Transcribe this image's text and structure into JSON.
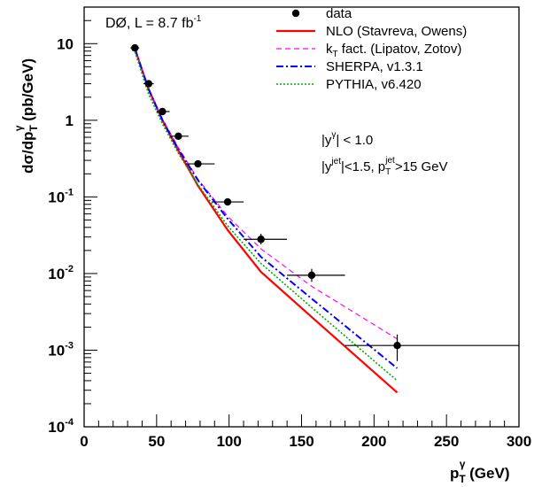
{
  "chart_data": {
    "type": "scatter",
    "title": "",
    "experiment_label": {
      "main": "DØ, L = 8.7 fb",
      "sup": "-1"
    },
    "xlabel": {
      "main": "p",
      "sub": "T",
      "sup": "γ",
      "tail": " (GeV)"
    },
    "ylabel": {
      "pre": "dσ/dp",
      "sub": "T",
      "sup": "γ",
      "tail": " (pb/GeV)"
    },
    "xlim": [
      0,
      300
    ],
    "ylim": [
      0.0001,
      30
    ],
    "y_scale": "log",
    "x_ticks": [
      0,
      50,
      100,
      150,
      200,
      250,
      300
    ],
    "y_ticks": [
      {
        "value": 0.0001,
        "base": "10",
        "exp": "-4"
      },
      {
        "value": 0.001,
        "base": "10",
        "exp": "-3"
      },
      {
        "value": 0.01,
        "base": "10",
        "exp": "-2"
      },
      {
        "value": 0.1,
        "base": "10",
        "exp": "-1"
      },
      {
        "value": 1,
        "base": "1",
        "exp": ""
      },
      {
        "value": 10,
        "base": "10",
        "exp": ""
      }
    ],
    "grid": false,
    "legend_position": "top-right",
    "data_series": {
      "name": "data",
      "color": "#000000",
      "points": [
        {
          "x": 35,
          "y": 8.8,
          "xlo": 32,
          "xhi": 38,
          "ylo": 8.2,
          "yhi": 9.4
        },
        {
          "x": 44.5,
          "y": 3.0,
          "xlo": 41,
          "xhi": 48,
          "ylo": 2.8,
          "yhi": 3.25
        },
        {
          "x": 54,
          "y": 1.3,
          "xlo": 50,
          "xhi": 59,
          "ylo": 1.2,
          "yhi": 1.4
        },
        {
          "x": 65,
          "y": 0.62,
          "xlo": 59,
          "xhi": 72,
          "ylo": 0.57,
          "yhi": 0.67
        },
        {
          "x": 78.5,
          "y": 0.27,
          "xlo": 70,
          "xhi": 90,
          "ylo": 0.245,
          "yhi": 0.295
        },
        {
          "x": 99,
          "y": 0.086,
          "xlo": 88,
          "xhi": 110,
          "ylo": 0.078,
          "yhi": 0.094
        },
        {
          "x": 122,
          "y": 0.028,
          "xlo": 110,
          "xhi": 140,
          "ylo": 0.024,
          "yhi": 0.033
        },
        {
          "x": 157,
          "y": 0.0095,
          "xlo": 140,
          "xhi": 180,
          "ylo": 0.0078,
          "yhi": 0.0115
        },
        {
          "x": 216,
          "y": 0.00115,
          "xlo": 180,
          "xhi": 300,
          "ylo": 0.00072,
          "yhi": 0.0016
        }
      ]
    },
    "series": [
      {
        "name": "NLO (Stavreva, Owens)",
        "color": "#ff0000",
        "dash": "solid",
        "x": [
          35,
          44.5,
          54,
          65,
          78.5,
          99,
          122,
          157,
          216
        ],
        "y": [
          8.6,
          2.55,
          1.0,
          0.4,
          0.14,
          0.037,
          0.0105,
          0.0027,
          0.00028
        ]
      },
      {
        "name": "k_T fact. (Lipatov, Zotov)",
        "color": "#ff00ff",
        "dash": "dashed",
        "x": [
          35,
          44.5,
          54,
          65,
          78.5,
          99,
          122,
          157,
          216
        ],
        "y": [
          8.6,
          2.6,
          1.05,
          0.44,
          0.17,
          0.056,
          0.021,
          0.0068,
          0.0014
        ]
      },
      {
        "name": "SHERPA, v1.3.1",
        "color": "#0000ff",
        "dash": "dashdot",
        "x": [
          35,
          44.5,
          54,
          65,
          78.5,
          99,
          122,
          157,
          216
        ],
        "y": [
          8.6,
          2.55,
          1.0,
          0.42,
          0.165,
          0.052,
          0.0165,
          0.0047,
          0.00058
        ]
      },
      {
        "name": "PYTHIA, v6.420",
        "color": "#00aa00",
        "dash": "dotted",
        "x": [
          35,
          44.5,
          54,
          65,
          78.5,
          99,
          122,
          157,
          216
        ],
        "y": [
          7.8,
          2.2,
          0.9,
          0.37,
          0.145,
          0.042,
          0.0135,
          0.0036,
          0.0004
        ]
      }
    ],
    "legend": [
      {
        "type": "marker",
        "label": "data"
      },
      {
        "type": "line",
        "series": 0,
        "label": "NLO (Stavreva, Owens)"
      },
      {
        "type": "line",
        "series": 1,
        "label_pre": "k",
        "label_sub": "T",
        "label_post": " fact. (Lipatov, Zotov)"
      },
      {
        "type": "line",
        "series": 2,
        "label": "SHERPA, v1.3.1"
      },
      {
        "type": "line",
        "series": 3,
        "label": "PYTHIA, v6.420"
      }
    ],
    "cuts": {
      "line1": {
        "pre": "|y",
        "sup": "γ",
        "post": "| < 1.0"
      },
      "line2": {
        "pre": "|y",
        "sup": "jet",
        "mid": "|<1.5, p",
        "sub": "T",
        "sup2": "jet",
        "post": ">15 GeV"
      }
    }
  }
}
